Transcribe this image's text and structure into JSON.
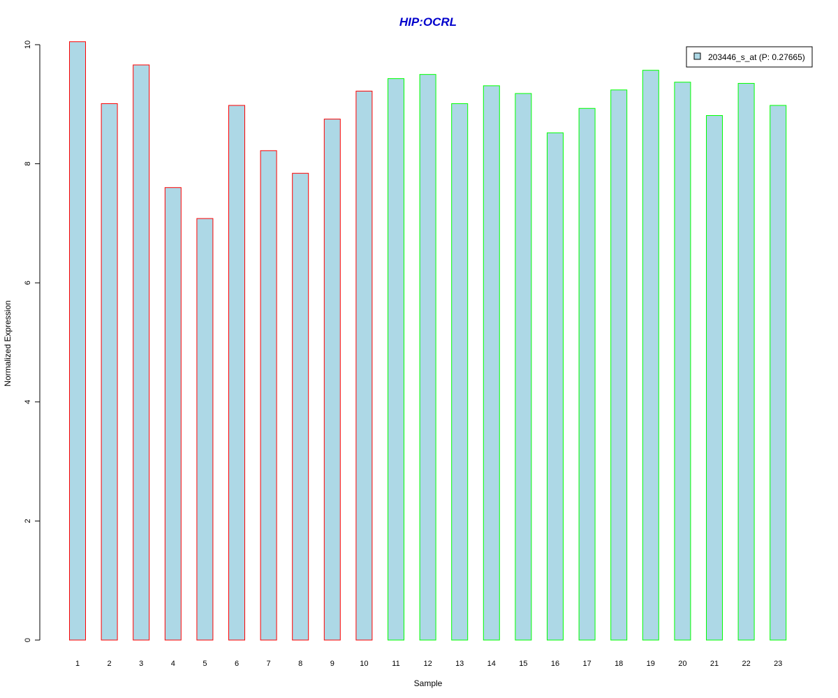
{
  "chart_data": {
    "type": "bar",
    "title": "HIP:OCRL",
    "xlabel": "Sample",
    "ylabel": "Normalized Expression",
    "ylim": [
      0,
      10
    ],
    "yticks": [
      "0",
      "2",
      "4",
      "6",
      "8",
      "10"
    ],
    "categories": [
      "1",
      "2",
      "3",
      "4",
      "5",
      "6",
      "7",
      "8",
      "9",
      "10",
      "11",
      "12",
      "13",
      "14",
      "15",
      "16",
      "17",
      "18",
      "19",
      "20",
      "21",
      "22",
      "23"
    ],
    "series": [
      {
        "name": "203446_s_at (P: 0.27665)",
        "values": [
          10.05,
          9.01,
          9.66,
          7.6,
          7.08,
          8.98,
          8.22,
          7.84,
          8.75,
          9.22,
          9.43,
          9.5,
          9.01,
          9.31,
          9.18,
          8.52,
          8.93,
          9.24,
          9.57,
          9.37,
          8.81,
          9.35,
          8.98
        ],
        "groups": [
          "a",
          "a",
          "a",
          "a",
          "a",
          "a",
          "a",
          "a",
          "a",
          "a",
          "b",
          "b",
          "b",
          "b",
          "b",
          "b",
          "b",
          "b",
          "b",
          "b",
          "b",
          "b",
          "b"
        ]
      }
    ],
    "legend_position": "top-right",
    "colors": {
      "fill": "#add8e6",
      "group_a_border": "#ff0000",
      "group_b_border": "#00ff00",
      "title": "#0000cc",
      "axis": "#000000"
    }
  }
}
